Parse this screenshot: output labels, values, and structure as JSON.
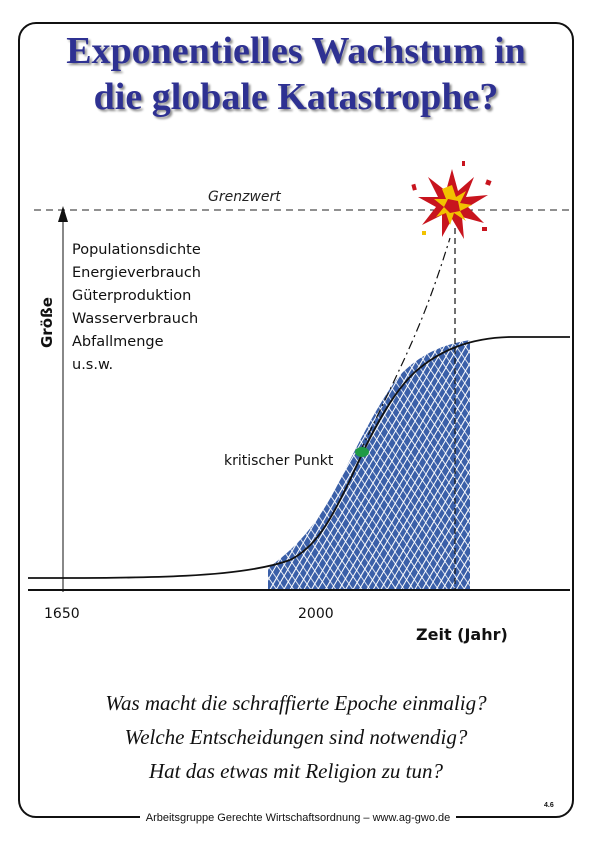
{
  "title": {
    "line1": "Exponentielles Wachstum in",
    "line2": "die globale Katastrophe?"
  },
  "diagram": {
    "limit_label": "Grenzwert",
    "y_axis_label": "Größe",
    "x_axis_label": "Zeit (Jahr)",
    "x_ticks": [
      "1650",
      "2000"
    ],
    "quantities": [
      "Populationsdichte",
      "Energieverbrauch",
      "Güterproduktion",
      "Wasserverbrauch",
      "Abfallmenge",
      "u.s.w."
    ],
    "critical_point_label": "kritischer Punkt",
    "colors": {
      "hatch": "#3a5fa8",
      "critical_point": "#1f9a45",
      "explosion_red": "#c8141e",
      "explosion_yellow": "#f2c200"
    },
    "icons": [
      "explosion-icon",
      "critical-point-dot",
      "arrow-up-icon"
    ]
  },
  "questions": [
    "Was macht die schraffierte Epoche einmalig?",
    "Welche Entscheidungen sind notwendig?",
    "Hat das etwas mit Religion zu tun?"
  ],
  "footer": {
    "text": "Arbeitsgruppe Gerechte Wirtschaftsordnung – www.ag-gwo.de",
    "page_number": "4.6"
  }
}
